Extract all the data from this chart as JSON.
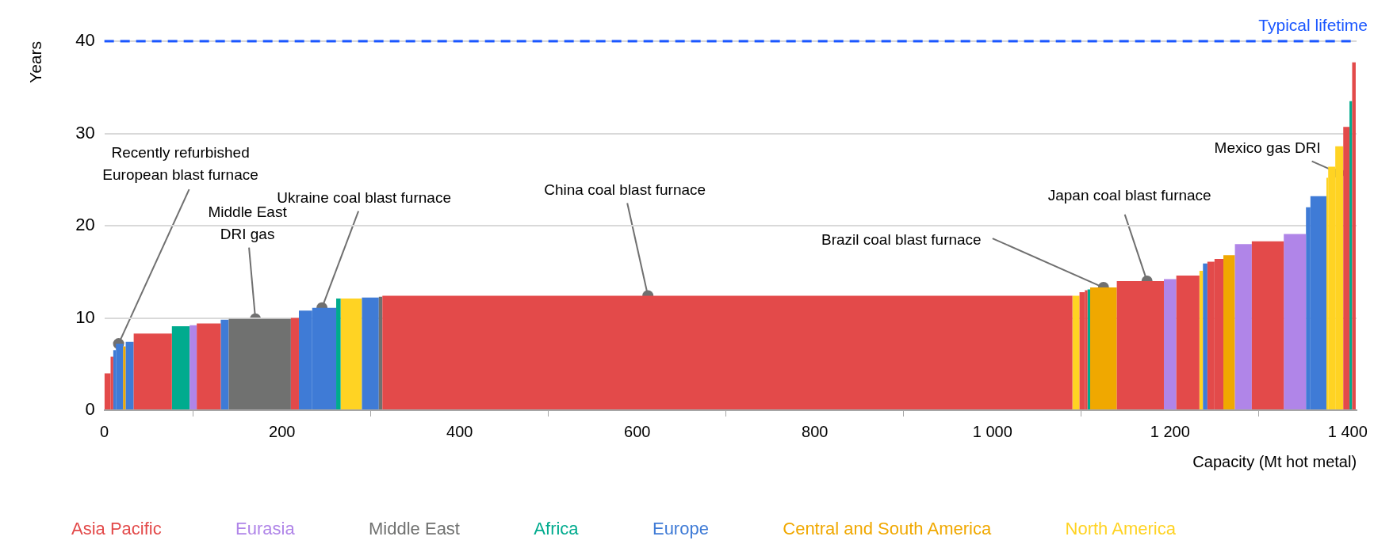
{
  "chart_data": {
    "type": "histogram",
    "xlabel": "Capacity (Mt hot metal)",
    "ylabel": "Years",
    "bins": [
      0,
      7,
      10,
      13,
      21,
      24,
      33,
      76,
      96,
      104,
      131,
      140,
      210,
      219,
      234,
      261,
      266,
      290,
      309,
      313,
      1090,
      1098,
      1104,
      1107,
      1110,
      1140,
      1193,
      1207,
      1233,
      1237,
      1242,
      1250,
      1260,
      1273,
      1292,
      1328,
      1353,
      1358,
      1376,
      1378,
      1386,
      1395,
      1402,
      1405,
      1409
    ],
    "series": [
      {
        "name": "Asia Pacific",
        "color": "#e34a4a",
        "values": [
          4.0,
          5.8,
          null,
          null,
          null,
          null,
          8.3,
          null,
          null,
          9.4,
          null,
          null,
          10.0,
          null,
          null,
          null,
          null,
          null,
          null,
          12.4,
          null,
          12.8,
          13.0,
          null,
          null,
          14.0,
          null,
          14.6,
          null,
          null,
          16.1,
          16.4,
          null,
          null,
          18.3,
          null,
          null,
          null,
          null,
          null,
          null,
          30.7,
          null,
          37.7
        ]
      },
      {
        "name": "Eurasia",
        "color": "#b085e8",
        "values": [
          null,
          null,
          null,
          null,
          null,
          null,
          null,
          null,
          9.2,
          null,
          null,
          null,
          null,
          null,
          null,
          null,
          null,
          null,
          null,
          null,
          null,
          null,
          null,
          null,
          null,
          null,
          14.2,
          null,
          null,
          null,
          null,
          null,
          null,
          18.0,
          null,
          19.1,
          null,
          null,
          null,
          null,
          null,
          null,
          null,
          null
        ]
      },
      {
        "name": "Middle East",
        "color": "#707170",
        "values": [
          null,
          null,
          null,
          null,
          null,
          null,
          null,
          null,
          null,
          null,
          null,
          9.9,
          null,
          null,
          null,
          null,
          null,
          null,
          12.3,
          null,
          null,
          null,
          null,
          null,
          null,
          null,
          null,
          null,
          null,
          null,
          null,
          null,
          null,
          null,
          null,
          null,
          null,
          null,
          null,
          null,
          null,
          null,
          null,
          null
        ]
      },
      {
        "name": "Africa",
        "color": "#00ab8e",
        "values": [
          null,
          null,
          null,
          null,
          null,
          null,
          null,
          9.1,
          null,
          null,
          null,
          null,
          null,
          null,
          null,
          12.1,
          null,
          null,
          null,
          null,
          null,
          null,
          null,
          13.1,
          null,
          null,
          null,
          null,
          null,
          null,
          null,
          null,
          null,
          null,
          null,
          null,
          null,
          null,
          null,
          null,
          null,
          null,
          33.5,
          null
        ]
      },
      {
        "name": "Europe",
        "color": "#3f7bd6",
        "values": [
          null,
          null,
          6.5,
          7.2,
          null,
          7.4,
          null,
          null,
          null,
          null,
          9.8,
          null,
          null,
          10.8,
          11.1,
          null,
          null,
          12.2,
          null,
          null,
          null,
          null,
          null,
          null,
          null,
          null,
          null,
          null,
          null,
          15.9,
          null,
          null,
          null,
          null,
          null,
          null,
          22.0,
          23.2,
          null,
          null,
          null,
          null,
          null,
          null
        ]
      },
      {
        "name": "Central and South America",
        "color": "#f0a800",
        "values": [
          null,
          null,
          null,
          null,
          6.9,
          null,
          null,
          null,
          null,
          null,
          null,
          null,
          null,
          null,
          null,
          null,
          null,
          null,
          null,
          null,
          null,
          null,
          null,
          null,
          13.3,
          null,
          null,
          null,
          null,
          null,
          null,
          null,
          16.8,
          null,
          null,
          null,
          null,
          null,
          null,
          null,
          null,
          null,
          null,
          null
        ]
      },
      {
        "name": "North America",
        "color": "#ffd323",
        "values": [
          null,
          null,
          null,
          null,
          null,
          null,
          null,
          null,
          null,
          null,
          null,
          null,
          null,
          null,
          null,
          null,
          12.1,
          null,
          null,
          null,
          12.4,
          null,
          null,
          null,
          null,
          null,
          null,
          null,
          15.1,
          null,
          null,
          null,
          null,
          null,
          null,
          null,
          null,
          null,
          25.2,
          26.4,
          28.6,
          null,
          null,
          null
        ]
      }
    ],
    "xlim": [
      0,
      1410
    ],
    "xticks": [
      0,
      200,
      400,
      600,
      800,
      {
        "value": 1000,
        "label": "1 000"
      },
      {
        "value": 1200,
        "label": "1 200"
      },
      {
        "value": 1400,
        "label": "1 400"
      }
    ],
    "ylim": [
      0,
      40
    ],
    "yticks": [
      0,
      10,
      20,
      30,
      40
    ],
    "grid": "y",
    "legend": "bottom",
    "ref_lines": [
      {
        "axis": "y",
        "value": 40,
        "label": "Typical lifetime",
        "color": "#1a56ff",
        "line_style": "dashed"
      }
    ],
    "annotations": [
      {
        "text": "Recently refurbished European blast furnace",
        "x": 16,
        "y": 7.2
      },
      {
        "text": "Middle East DRI gas",
        "x": 170,
        "y": 9.9
      },
      {
        "text": "Ukraine coal blast furnace",
        "x": 245,
        "y": 11.1
      },
      {
        "text": "China coal blast furnace",
        "x": 612,
        "y": 12.4
      },
      {
        "text": "Brazil coal blast furnace",
        "x": 1125,
        "y": 13.3
      },
      {
        "text": "Japan coal blast furnace",
        "x": 1174,
        "y": 14.0
      },
      {
        "text": "Mexico gas DRI",
        "x": 1390,
        "y": 25.7
      }
    ]
  }
}
